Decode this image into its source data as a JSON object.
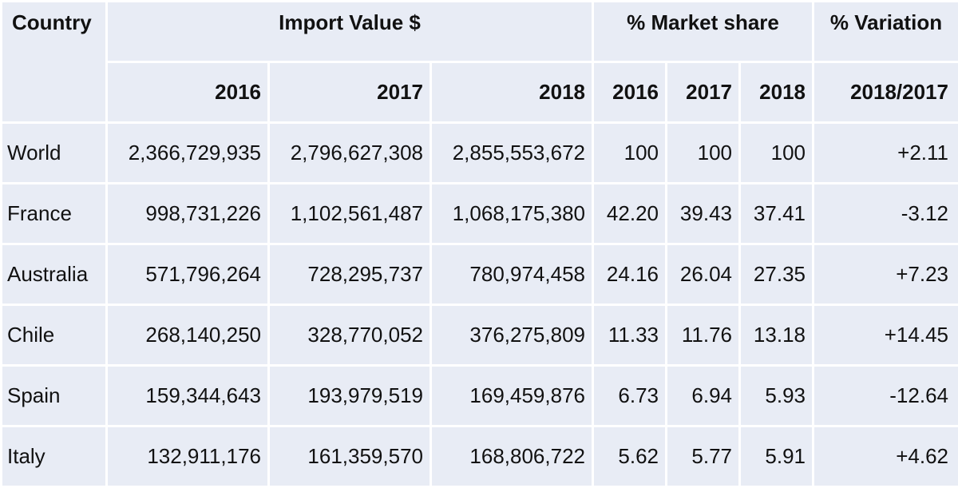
{
  "header": {
    "country": "Country",
    "import_value": "Import Value $",
    "market_share": "% Market share",
    "variation": "% Variation",
    "years": [
      "2016",
      "2017",
      "2018"
    ],
    "variation_sub": "2018/2017"
  },
  "rows": [
    {
      "country": "World",
      "imp2016": "2,366,729,935",
      "imp2017": "2,796,627,308",
      "imp2018": "2,855,553,672",
      "ms2016": "100",
      "ms2017": "100",
      "ms2018": "100",
      "variation": "+2.11"
    },
    {
      "country": "France",
      "imp2016": "998,731,226",
      "imp2017": "1,102,561,487",
      "imp2018": "1,068,175,380",
      "ms2016": "42.20",
      "ms2017": "39.43",
      "ms2018": "37.41",
      "variation": "-3.12"
    },
    {
      "country": "Australia",
      "imp2016": "571,796,264",
      "imp2017": "728,295,737",
      "imp2018": "780,974,458",
      "ms2016": "24.16",
      "ms2017": "26.04",
      "ms2018": "27.35",
      "variation": "+7.23"
    },
    {
      "country": "Chile",
      "imp2016": "268,140,250",
      "imp2017": "328,770,052",
      "imp2018": "376,275,809",
      "ms2016": "11.33",
      "ms2017": "11.76",
      "ms2018": "13.18",
      "variation": "+14.45"
    },
    {
      "country": "Spain",
      "imp2016": "159,344,643",
      "imp2017": "193,979,519",
      "imp2018": "169,459,876",
      "ms2016": "6.73",
      "ms2017": "6.94",
      "ms2018": "5.93",
      "variation": "-12.64"
    },
    {
      "country": "Italy",
      "imp2016": "132,911,176",
      "imp2017": "161,359,570",
      "imp2018": "168,806,722",
      "ms2016": "5.62",
      "ms2017": "5.77",
      "ms2018": "5.91",
      "variation": "+4.62"
    }
  ]
}
